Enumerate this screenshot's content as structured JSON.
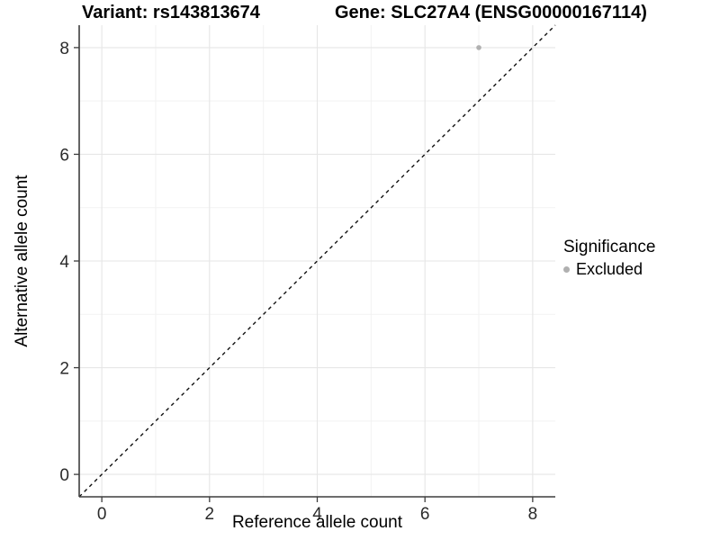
{
  "title": {
    "left": "Variant: rs143813674",
    "right": "Gene: SLC27A4 (ENSG00000167114)"
  },
  "axes": {
    "x_label": "Reference allele count",
    "y_label": "Alternative allele count"
  },
  "legend": {
    "title": "Significance",
    "items": [
      {
        "label": "Excluded",
        "color": "#b0b0b0"
      }
    ]
  },
  "colors": {
    "background": "#ffffff",
    "grid_major": "#e6e6e6",
    "grid_minor": "#f2f2f2",
    "axis_line": "#3d3d3d",
    "tick_label": "#2b2b2b",
    "point": "#b0b0b0",
    "reference_line": "#111111"
  },
  "chart_data": {
    "type": "scatter",
    "title": "Variant: rs143813674    Gene: SLC27A4 (ENSG00000167114)",
    "xlabel": "Reference allele count",
    "ylabel": "Alternative allele count",
    "xlim": [
      -0.42,
      8.42
    ],
    "ylim": [
      -0.42,
      8.42
    ],
    "x_ticks": [
      0,
      2,
      4,
      6,
      8
    ],
    "y_ticks": [
      0,
      2,
      4,
      6,
      8
    ],
    "x_minor": [
      1,
      3,
      5,
      7
    ],
    "y_minor": [
      1,
      3,
      5,
      7
    ],
    "grid": true,
    "legend_position": "right",
    "series": [
      {
        "name": "Excluded",
        "color": "#b0b0b0",
        "points": [
          {
            "x": 7,
            "y": 8
          }
        ]
      }
    ],
    "reference_line": {
      "type": "abline",
      "slope": 1,
      "intercept": 0,
      "style": "dashed"
    }
  }
}
